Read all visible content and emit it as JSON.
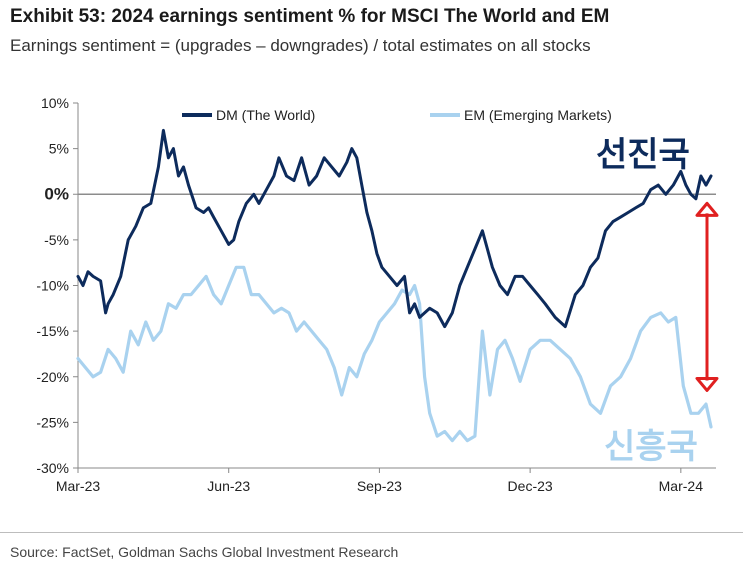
{
  "header": {
    "title": "Exhibit 53: 2024 earnings sentiment % for MSCI The World and EM",
    "subtitle": "Earnings sentiment = (upgrades – downgrades) / total estimates on all stocks"
  },
  "footer": {
    "source": "Source: FactSet, Goldman Sachs Global Investment Research"
  },
  "annotations": {
    "dm_label": "선진국",
    "em_label": "신흥국",
    "dm_color": "#0d2b5c",
    "em_color": "#a9d2ef",
    "arrow_color": "#e02020"
  },
  "chart_data": {
    "type": "line",
    "title": "Exhibit 53: 2024 earnings sentiment % for MSCI The World and EM",
    "xlabel": "",
    "ylabel": "",
    "ylim": [
      -30,
      10
    ],
    "y_ticks": [
      {
        "value": 10,
        "label": "10%"
      },
      {
        "value": 5,
        "label": "5%"
      },
      {
        "value": 0,
        "label": "0%"
      },
      {
        "value": -5,
        "label": "-5%"
      },
      {
        "value": -10,
        "label": "-10%"
      },
      {
        "value": -15,
        "label": "-15%"
      },
      {
        "value": -20,
        "label": "-20%"
      },
      {
        "value": -25,
        "label": "-25%"
      },
      {
        "value": -30,
        "label": "-30%"
      }
    ],
    "x_ticks": [
      {
        "value": 0,
        "label": "Mar-23"
      },
      {
        "value": 3,
        "label": "Jun-23"
      },
      {
        "value": 6,
        "label": "Sep-23"
      },
      {
        "value": 9,
        "label": "Dec-23"
      },
      {
        "value": 12,
        "label": "Mar-24"
      }
    ],
    "xlim": [
      0,
      12.7
    ],
    "grid": false,
    "legend_position": "top",
    "series": [
      {
        "name": "DM (The World)",
        "color": "#0d2b5c",
        "x": [
          0,
          0.1,
          0.2,
          0.3,
          0.45,
          0.55,
          0.6,
          0.7,
          0.85,
          1.0,
          1.15,
          1.3,
          1.45,
          1.6,
          1.7,
          1.8,
          1.9,
          2.0,
          2.1,
          2.2,
          2.35,
          2.5,
          2.6,
          2.7,
          2.85,
          3.0,
          3.1,
          3.2,
          3.35,
          3.5,
          3.6,
          3.75,
          3.9,
          4.0,
          4.15,
          4.3,
          4.45,
          4.6,
          4.75,
          4.9,
          5.05,
          5.2,
          5.35,
          5.45,
          5.55,
          5.65,
          5.75,
          5.85,
          5.95,
          6.05,
          6.2,
          6.35,
          6.5,
          6.6,
          6.7,
          6.8,
          6.9,
          7.0,
          7.15,
          7.3,
          7.45,
          7.6,
          7.75,
          7.9,
          8.05,
          8.15,
          8.25,
          8.4,
          8.55,
          8.7,
          8.85,
          9.0,
          9.15,
          9.3,
          9.5,
          9.7,
          9.9,
          10.05,
          10.2,
          10.35,
          10.5,
          10.65,
          10.8,
          10.95,
          11.1,
          11.25,
          11.4,
          11.55,
          11.7,
          11.85,
          12.0,
          12.1,
          12.2,
          12.3,
          12.4,
          12.5,
          12.6
        ],
        "values": [
          -9,
          -10,
          -8.5,
          -9,
          -9.5,
          -13,
          -12,
          -11,
          -9,
          -5,
          -3.5,
          -1.5,
          -1,
          3,
          7,
          4,
          5,
          2,
          3,
          1,
          -1.5,
          -2,
          -1.5,
          -2.5,
          -4,
          -5.5,
          -5,
          -3,
          -1,
          0,
          -1,
          0.5,
          2,
          4,
          2,
          1.5,
          4,
          1,
          2,
          4,
          3,
          2,
          3.5,
          5,
          4,
          1,
          -2,
          -4,
          -6.5,
          -8,
          -9,
          -10,
          -9,
          -13,
          -12,
          -13.5,
          -13,
          -12.5,
          -13,
          -14.5,
          -13,
          -10,
          -8,
          -6,
          -4,
          -6,
          -8,
          -10,
          -11,
          -9,
          -9,
          -10,
          -11,
          -12,
          -13.5,
          -14.5,
          -11,
          -10,
          -8,
          -7,
          -4,
          -3,
          -2.5,
          -2,
          -1.5,
          -1,
          0.5,
          1,
          0,
          1,
          2.5,
          1,
          0,
          -0.5,
          2,
          1,
          2
        ]
      },
      {
        "name": "EM (Emerging Markets)",
        "color": "#a9d2ef",
        "x": [
          0,
          0.15,
          0.3,
          0.45,
          0.6,
          0.75,
          0.9,
          1.05,
          1.2,
          1.35,
          1.5,
          1.65,
          1.8,
          1.95,
          2.1,
          2.25,
          2.4,
          2.55,
          2.7,
          2.85,
          3.0,
          3.15,
          3.3,
          3.45,
          3.6,
          3.75,
          3.9,
          4.05,
          4.2,
          4.35,
          4.5,
          4.65,
          4.8,
          4.95,
          5.1,
          5.25,
          5.4,
          5.55,
          5.7,
          5.85,
          6.0,
          6.15,
          6.3,
          6.45,
          6.6,
          6.7,
          6.8,
          6.9,
          7.0,
          7.15,
          7.3,
          7.45,
          7.6,
          7.75,
          7.9,
          8.05,
          8.2,
          8.35,
          8.5,
          8.65,
          8.8,
          9.0,
          9.2,
          9.4,
          9.6,
          9.8,
          10.0,
          10.2,
          10.4,
          10.6,
          10.8,
          11.0,
          11.2,
          11.4,
          11.6,
          11.75,
          11.9,
          12.05,
          12.2,
          12.35,
          12.5,
          12.6
        ],
        "values": [
          -18,
          -19,
          -20,
          -19.5,
          -17,
          -18,
          -19.5,
          -15,
          -16.5,
          -14,
          -16,
          -15,
          -12,
          -12.5,
          -11,
          -11,
          -10,
          -9,
          -11,
          -12,
          -10,
          -8,
          -8,
          -11,
          -11,
          -12,
          -13,
          -12.5,
          -13,
          -15,
          -14,
          -15,
          -16,
          -17,
          -19,
          -22,
          -19,
          -20,
          -17.5,
          -16,
          -14,
          -13,
          -12,
          -10.5,
          -11,
          -10,
          -12,
          -20,
          -24,
          -26.5,
          -26,
          -27,
          -26,
          -27,
          -26.5,
          -15,
          -22,
          -17,
          -16,
          -18,
          -20.5,
          -17,
          -16,
          -16,
          -17,
          -18,
          -20,
          -23,
          -24,
          -21,
          -20,
          -18,
          -15,
          -13.5,
          -13,
          -14,
          -13.5,
          -21,
          -24,
          -24,
          -23,
          -25.5
        ]
      }
    ]
  }
}
